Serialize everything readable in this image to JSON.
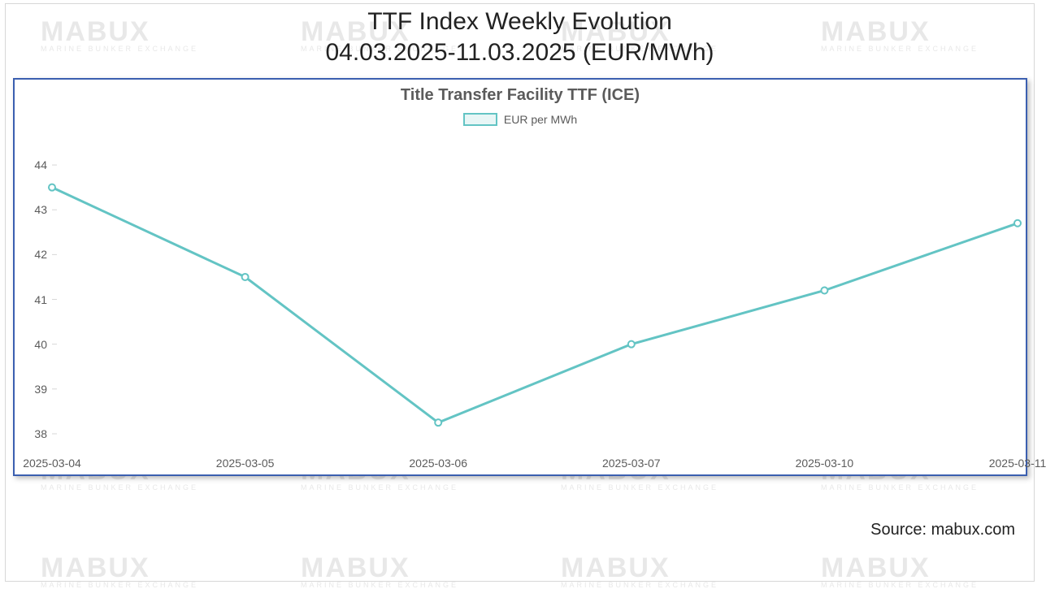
{
  "title_line1": "TTF Index Weekly Evolution",
  "title_line2": "04.03.2025-11.03.2025 (EUR/MWh)",
  "source_text": "Source: mabux.com",
  "watermark": {
    "main": "MABUX",
    "sub": "MARINE BUNKER EXCHANGE"
  },
  "chart": {
    "type": "line",
    "inner_title": "Title Transfer Facility TTF (ICE)",
    "legend_label": "EUR per MWh",
    "x_labels": [
      "2025-03-04",
      "2025-03-05",
      "2025-03-06",
      "2025-03-07",
      "2025-03-10",
      "2025-03-11"
    ],
    "values": [
      43.5,
      41.5,
      38.25,
      40.0,
      41.2,
      42.7
    ],
    "ylim": [
      37.6,
      44.6
    ],
    "y_ticks": [
      38,
      39,
      40,
      41,
      42,
      43,
      44
    ],
    "line_color": "#63c4c4",
    "line_width": 3,
    "marker_radius": 4,
    "marker_fill": "#ffffff",
    "marker_stroke": "#63c4c4",
    "grid_color": "#e0e0e0",
    "axis_color": "#d7d7d7",
    "background_color": "#ffffff",
    "frame_border_color": "#3b5fb0",
    "inner_title_fontsize": 20,
    "inner_title_color": "#5b5b5b",
    "tick_fontsize": 14,
    "tick_color": "#5b5b5b",
    "legend_swatch_fill": "#e8f6f6",
    "legend_swatch_border": "#63c4c4"
  }
}
